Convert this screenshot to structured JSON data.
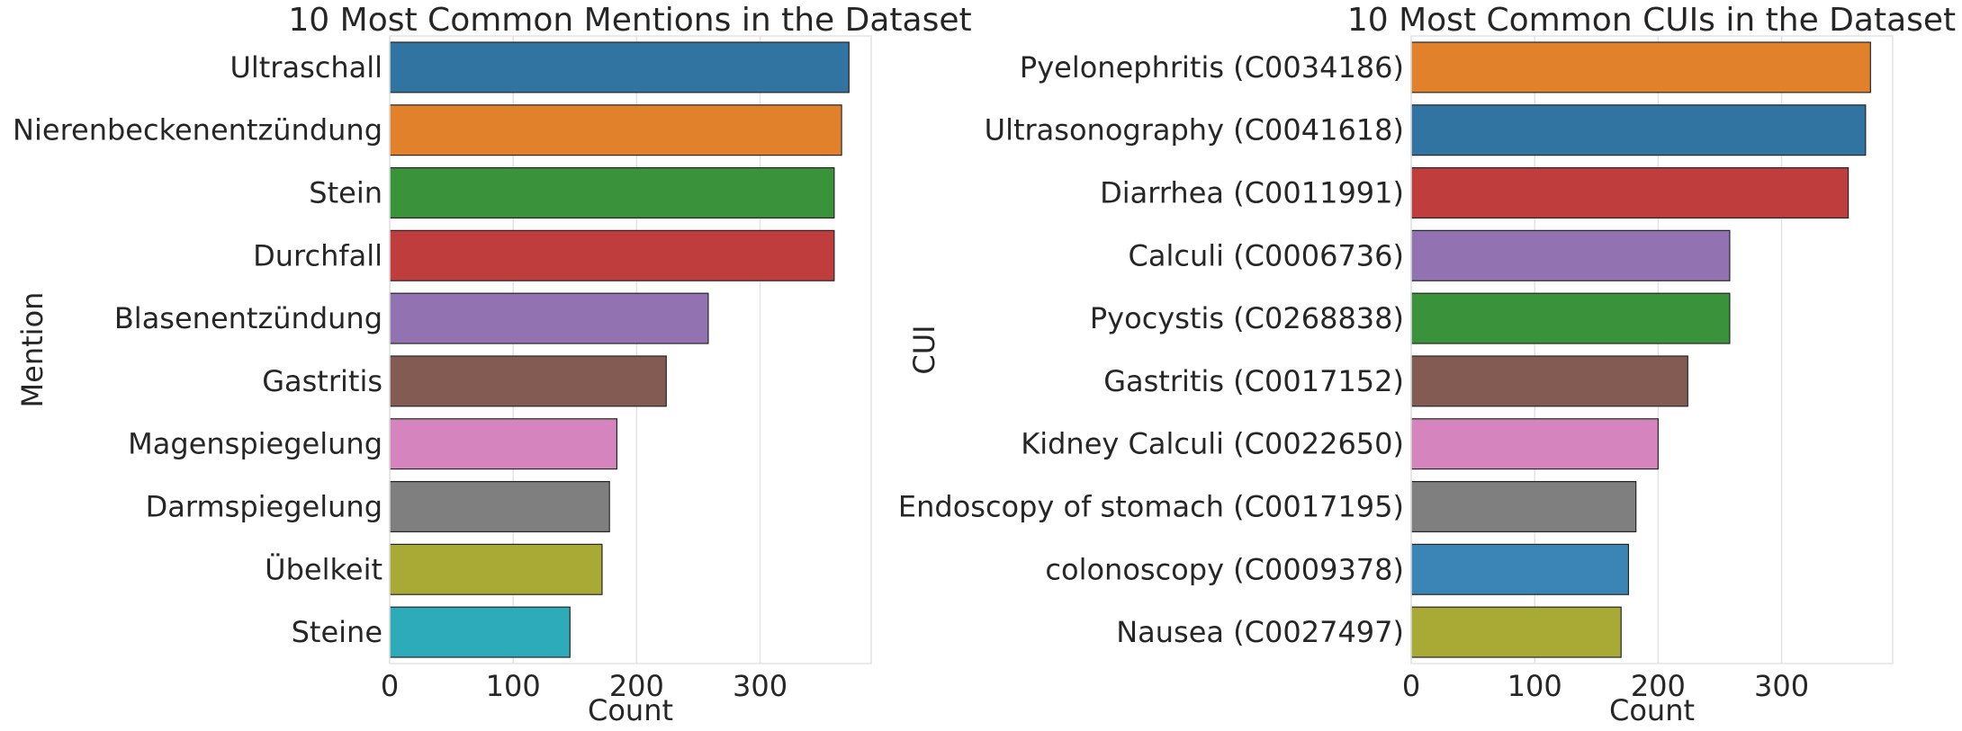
{
  "chart_data": [
    {
      "type": "bar",
      "orientation": "horizontal",
      "title": "10 Most Common Mentions in the Dataset",
      "xlabel": "Count",
      "ylabel": "Mention",
      "xlim": [
        0,
        390
      ],
      "xticks": [
        0,
        100,
        200,
        300
      ],
      "grid": true,
      "categories": [
        "Ultraschall",
        "Nierenbeckenentzündung",
        "Stein",
        "Durchfall",
        "Blasenentzündung",
        "Gastritis",
        "Magenspiegelung",
        "Darmspiegelung",
        "Übelkeit",
        "Steine"
      ],
      "values": [
        372,
        366,
        360,
        360,
        258,
        224,
        184,
        178,
        172,
        146
      ],
      "colors": [
        "#3274a1",
        "#e1812c",
        "#3a923a",
        "#c03d3e",
        "#9372b2",
        "#845b53",
        "#d684bd",
        "#7f7f7f",
        "#a9aa35",
        "#2eabb8"
      ]
    },
    {
      "type": "bar",
      "orientation": "horizontal",
      "title": "10 Most Common CUIs in the Dataset",
      "xlabel": "Count",
      "ylabel": "CUI",
      "xlim": [
        0,
        390
      ],
      "xticks": [
        0,
        100,
        200,
        300
      ],
      "grid": true,
      "categories": [
        "Pyelonephritis (C0034186)",
        "Ultrasonography (C0041618)",
        "Diarrhea (C0011991)",
        "Calculi (C0006736)",
        "Pyocystis (C0268838)",
        "Gastritis (C0017152)",
        "Kidney Calculi (C0022650)",
        "Endoscopy of stomach (C0017195)",
        "colonoscopy (C0009378)",
        "Nausea (C0027497)"
      ],
      "values": [
        372,
        368,
        354,
        258,
        258,
        224,
        200,
        182,
        176,
        170
      ],
      "colors": [
        "#e1812c",
        "#3274a1",
        "#c03d3e",
        "#9372b2",
        "#3a923a",
        "#845b53",
        "#d684bd",
        "#7f7f7f",
        "#3a84b6",
        "#a9aa35"
      ]
    }
  ]
}
